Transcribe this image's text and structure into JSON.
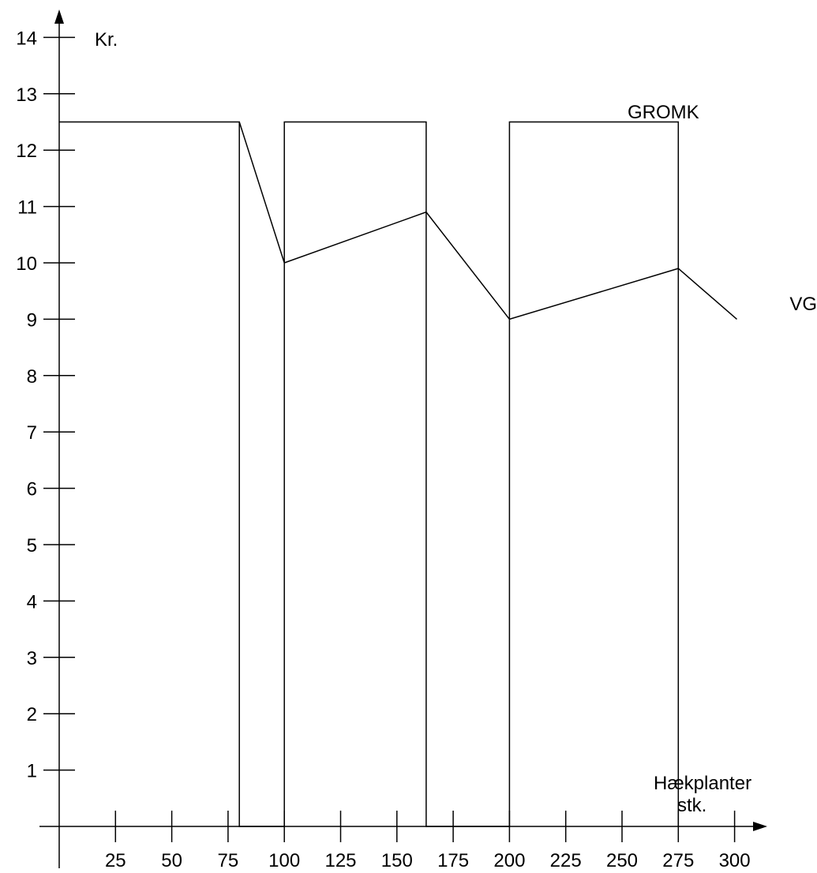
{
  "chart_data": {
    "type": "line",
    "ylabel": "Kr.",
    "xlabel_line1": "Hækplanter",
    "xlabel_line2": "stk.",
    "y_ticks": [
      1,
      2,
      3,
      4,
      5,
      6,
      7,
      8,
      9,
      10,
      11,
      12,
      13,
      14
    ],
    "x_ticks": [
      25,
      50,
      75,
      100,
      125,
      150,
      175,
      200,
      225,
      250,
      275,
      300
    ],
    "xlim": [
      0,
      310
    ],
    "ylim": [
      0,
      14.5
    ],
    "grid": false,
    "series": [
      {
        "name": "GROMK",
        "points": [
          [
            0,
            12.5
          ],
          [
            80,
            12.5
          ],
          [
            80,
            0
          ],
          [
            100,
            0
          ],
          [
            100,
            12.5
          ],
          [
            163,
            12.5
          ],
          [
            163,
            0
          ],
          [
            200,
            0
          ],
          [
            200,
            12.5
          ],
          [
            275,
            12.5
          ],
          [
            275,
            0
          ]
        ]
      },
      {
        "name": "VG",
        "points": [
          [
            80,
            12.5
          ],
          [
            100,
            10
          ],
          [
            163,
            10.9
          ],
          [
            200,
            9
          ],
          [
            275,
            9.9
          ],
          [
            301,
            9
          ]
        ]
      }
    ]
  }
}
